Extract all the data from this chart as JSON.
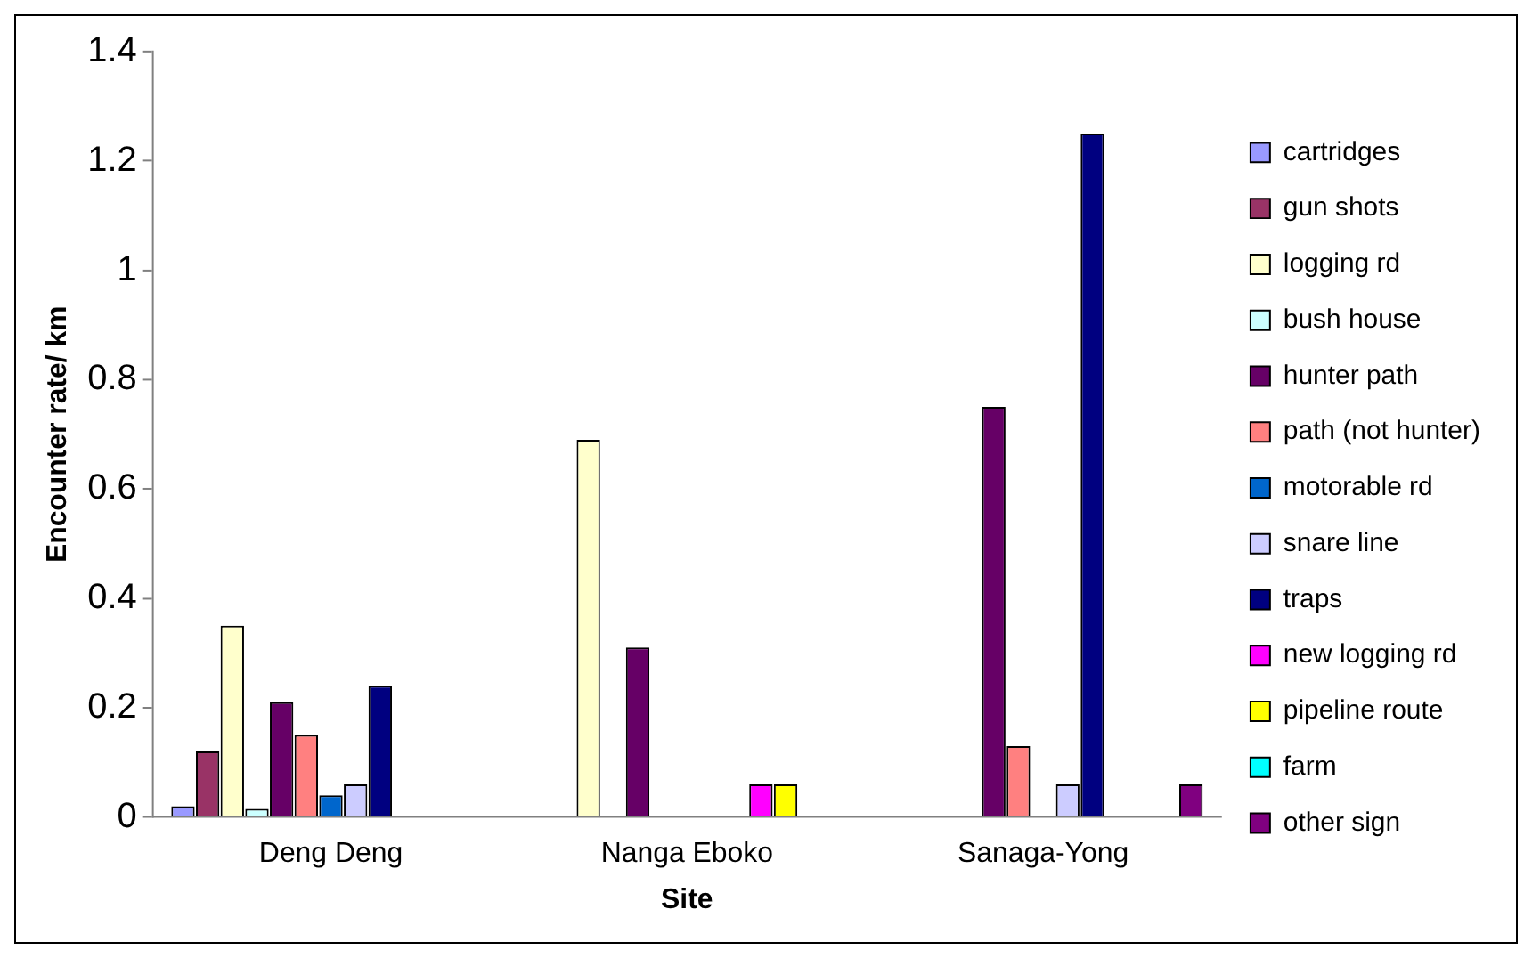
{
  "chart_data": {
    "type": "bar",
    "xlabel": "Site",
    "ylabel": "Encounter rate/ km",
    "categories": [
      "Deng Deng",
      "Nanga Eboko",
      "Sanaga-Yong"
    ],
    "series": [
      {
        "name": "cartridges",
        "color": "#9999ff",
        "values": [
          0.02,
          null,
          null
        ]
      },
      {
        "name": "gun shots",
        "color": "#993366",
        "values": [
          0.12,
          null,
          null
        ]
      },
      {
        "name": "logging rd",
        "color": "#ffffcc",
        "values": [
          0.35,
          0.69,
          null
        ]
      },
      {
        "name": "bush house",
        "color": "#ccffff",
        "values": [
          0.015,
          null,
          null
        ]
      },
      {
        "name": "hunter path",
        "color": "#660066",
        "values": [
          0.21,
          0.31,
          0.75
        ]
      },
      {
        "name": "path (not hunter)",
        "color": "#ff8080",
        "values": [
          0.15,
          null,
          0.13
        ]
      },
      {
        "name": "motorable rd",
        "color": "#0066cc",
        "values": [
          0.04,
          null,
          null
        ]
      },
      {
        "name": "snare line",
        "color": "#ccccff",
        "values": [
          0.06,
          null,
          0.06
        ]
      },
      {
        "name": "traps",
        "color": "#000080",
        "values": [
          0.24,
          null,
          1.25
        ]
      },
      {
        "name": "new logging rd",
        "color": "#ff00ff",
        "values": [
          null,
          0.06,
          null
        ]
      },
      {
        "name": "pipeline route",
        "color": "#ffff00",
        "values": [
          null,
          0.06,
          null
        ]
      },
      {
        "name": "farm",
        "color": "#00ffff",
        "values": [
          null,
          null,
          null
        ]
      },
      {
        "name": "other sign",
        "color": "#800080",
        "values": [
          null,
          null,
          0.06
        ]
      }
    ],
    "ylim": [
      0,
      1.4
    ],
    "yticks": [
      0,
      0.2,
      0.4,
      0.6,
      0.8,
      1,
      1.2,
      1.4
    ],
    "grid": false,
    "legend": "right"
  }
}
